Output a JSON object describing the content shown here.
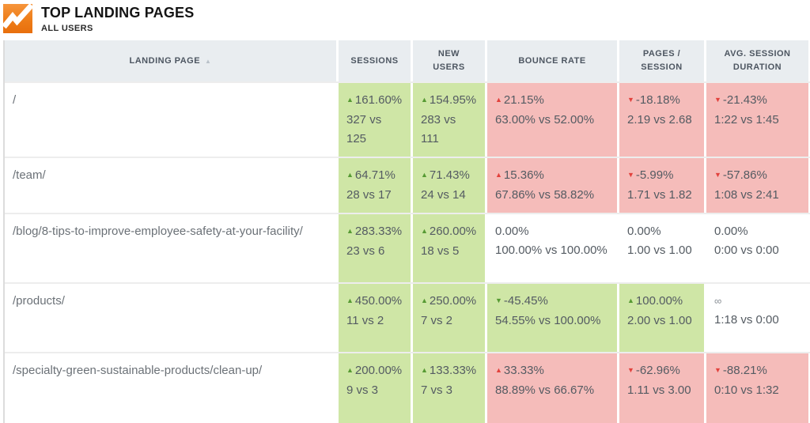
{
  "header": {
    "title": "TOP LANDING PAGES",
    "subtitle": "ALL USERS"
  },
  "colors": {
    "logo_orange_top": "#f6953c",
    "logo_orange_bottom": "#e86f0d",
    "positive_bg": "#cfe6a6",
    "negative_bg": "#f5bcba",
    "neutral_bg": "#ffffff",
    "positive_arrow": "#569a33",
    "negative_arrow": "#e2423d",
    "header_bg": "#e9edf0"
  },
  "table": {
    "columns": [
      {
        "label": "LANDING PAGE",
        "sort": "asc"
      },
      {
        "label": "SESSIONS"
      },
      {
        "label": "NEW USERS"
      },
      {
        "label": "BOUNCE RATE"
      },
      {
        "label": "PAGES / SESSION"
      },
      {
        "label": "AVG. SESSION DURATION"
      }
    ],
    "rows": [
      {
        "page": "/",
        "metrics": [
          {
            "change": "161.60%",
            "arrow": "up",
            "values": "327 vs 125",
            "status": "good"
          },
          {
            "change": "154.95%",
            "arrow": "up",
            "values": "283 vs 111",
            "status": "good"
          },
          {
            "change": "21.15%",
            "arrow": "up",
            "values": "63.00% vs 52.00%",
            "status": "bad"
          },
          {
            "change": "-18.18%",
            "arrow": "down",
            "values": "2.19 vs 2.68",
            "status": "bad"
          },
          {
            "change": "-21.43%",
            "arrow": "down",
            "values": "1:22 vs 1:45",
            "status": "bad"
          }
        ]
      },
      {
        "page": "/team/",
        "metrics": [
          {
            "change": "64.71%",
            "arrow": "up",
            "values": "28 vs 17",
            "status": "good"
          },
          {
            "change": "71.43%",
            "arrow": "up",
            "values": "24 vs 14",
            "status": "good"
          },
          {
            "change": "15.36%",
            "arrow": "up",
            "values": "67.86% vs 58.82%",
            "status": "bad"
          },
          {
            "change": "-5.99%",
            "arrow": "down",
            "values": "1.71 vs 1.82",
            "status": "bad"
          },
          {
            "change": "-57.86%",
            "arrow": "down",
            "values": "1:08 vs 2:41",
            "status": "bad"
          }
        ]
      },
      {
        "page": "/blog/8-tips-to-improve-employee-safety-at-your-facility/",
        "metrics": [
          {
            "change": "283.33%",
            "arrow": "up",
            "values": "23 vs 6",
            "status": "good"
          },
          {
            "change": "260.00%",
            "arrow": "up",
            "values": "18 vs 5",
            "status": "good"
          },
          {
            "change": "0.00%",
            "arrow": "none",
            "values": "100.00% vs 100.00%",
            "status": "neutral"
          },
          {
            "change": "0.00%",
            "arrow": "none",
            "values": "1.00 vs 1.00",
            "status": "neutral"
          },
          {
            "change": "0.00%",
            "arrow": "none",
            "values": "0:00 vs 0:00",
            "status": "neutral"
          }
        ]
      },
      {
        "page": "/products/",
        "metrics": [
          {
            "change": "450.00%",
            "arrow": "up",
            "values": "11 vs 2",
            "status": "good"
          },
          {
            "change": "250.00%",
            "arrow": "up",
            "values": "7 vs 2",
            "status": "good"
          },
          {
            "change": "-45.45%",
            "arrow": "down",
            "values": "54.55% vs 100.00%",
            "status": "good"
          },
          {
            "change": "100.00%",
            "arrow": "up",
            "values": "2.00 vs 1.00",
            "status": "good"
          },
          {
            "change": "∞",
            "arrow": "none",
            "values": "1:18 vs 0:00",
            "status": "neutral"
          }
        ]
      },
      {
        "page": "/specialty-green-sustainable-products/clean-up/",
        "metrics": [
          {
            "change": "200.00%",
            "arrow": "up",
            "values": "9 vs 3",
            "status": "good"
          },
          {
            "change": "133.33%",
            "arrow": "up",
            "values": "7 vs 3",
            "status": "good"
          },
          {
            "change": "33.33%",
            "arrow": "up",
            "values": "88.89% vs 66.67%",
            "status": "bad"
          },
          {
            "change": "-62.96%",
            "arrow": "down",
            "values": "1.11 vs 3.00",
            "status": "bad"
          },
          {
            "change": "-88.21%",
            "arrow": "down",
            "values": "0:10 vs 1:32",
            "status": "bad"
          }
        ]
      }
    ]
  }
}
